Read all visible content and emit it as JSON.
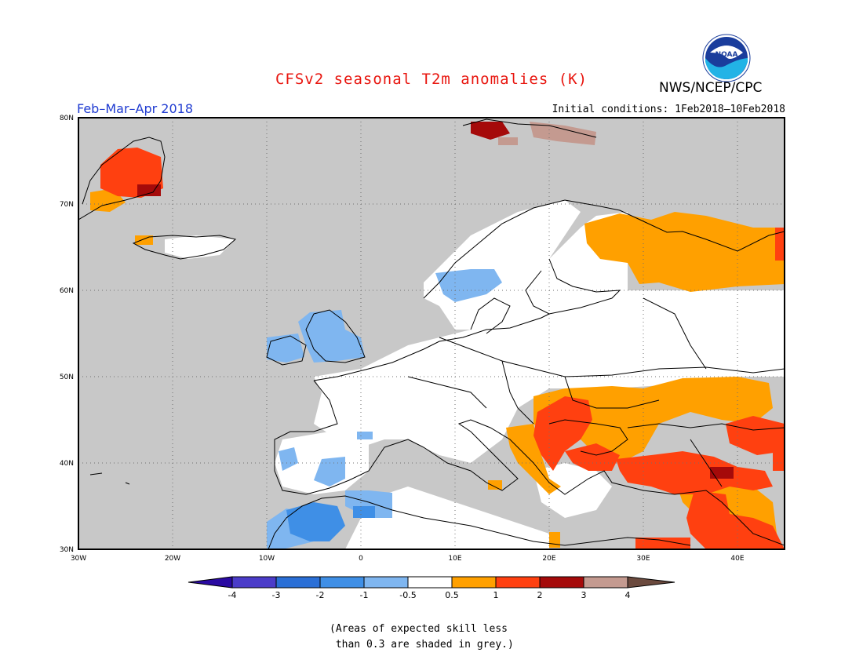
{
  "title": "CFSv2 seasonal T2m anomalies (K)",
  "organization": "NWS/NCEP/CPC",
  "logo_text": "NOAA",
  "season_label": "Feb–Mar–Apr 2018",
  "initial_conditions": "Initial conditions: 1Feb2018–10Feb2018",
  "footnote": "(Areas of expected skill less\n than 0.3 are shaded in grey.)",
  "colors": {
    "title": "#e8150e",
    "season": "#1f3bd1",
    "no_skill_grey": "#c8c8c8",
    "land_white": "#ffffff",
    "ocean_grey": "#c8c8c8"
  },
  "map": {
    "lon_range": [
      -30,
      45
    ],
    "lat_range": [
      30,
      80
    ],
    "lat_ticks": [
      "30N",
      "40N",
      "50N",
      "60N",
      "70N",
      "80N"
    ],
    "lon_ticks": [
      "30W",
      "20W",
      "10W",
      "0",
      "10E",
      "20E",
      "30E",
      "40E"
    ],
    "gridlines": "dotted",
    "anomaly_regions": [
      {
        "name": "Greenland east coast",
        "category": "1 to 2",
        "lon": [
          -27,
          -22
        ],
        "lat": [
          70,
          75
        ]
      },
      {
        "name": "Iceland",
        "category": "0.5 to 1",
        "lon": [
          -22,
          -15
        ],
        "lat": [
          64,
          66
        ]
      },
      {
        "name": "Svalbard",
        "category": "2 to 3",
        "lon": [
          12,
          22
        ],
        "lat": [
          77,
          80
        ]
      },
      {
        "name": "Scandinavia west",
        "category": "-1 to -0.5",
        "lon": [
          5,
          15
        ],
        "lat": [
          58,
          63
        ]
      },
      {
        "name": "British Isles",
        "category": "-1 to -0.5",
        "lon": [
          -10,
          0
        ],
        "lat": [
          51,
          58
        ]
      },
      {
        "name": "Iberia south",
        "category": "-1 to -0.5",
        "lon": [
          -9,
          -3
        ],
        "lat": [
          36,
          40
        ]
      },
      {
        "name": "Northwest Africa",
        "category": "-2 to -1",
        "lon": [
          -10,
          2
        ],
        "lat": [
          30,
          35
        ]
      },
      {
        "name": "Northwest Russia",
        "category": "0.5 to 1",
        "lon": [
          25,
          45
        ],
        "lat": [
          61,
          69
        ]
      },
      {
        "name": "Balkans",
        "category": "1 to 2",
        "lon": [
          17,
          27
        ],
        "lat": [
          40,
          46
        ]
      },
      {
        "name": "Eastern Europe",
        "category": "0.5 to 1",
        "lon": [
          15,
          45
        ],
        "lat": [
          44,
          50
        ]
      },
      {
        "name": "Turkey",
        "category": "1 to 2",
        "lon": [
          27,
          45
        ],
        "lat": [
          36,
          41
        ]
      },
      {
        "name": "Middle East",
        "category": "1 to 2",
        "lon": [
          35,
          45
        ],
        "lat": [
          30,
          36
        ]
      }
    ]
  },
  "colorbar": {
    "labels": [
      "-4",
      "-3",
      "-2",
      "-1",
      "-0.5",
      "0.5",
      "1",
      "2",
      "3",
      "4"
    ],
    "colors": [
      "#2a0aa2",
      "#4b3cc9",
      "#2a6fd6",
      "#3f8fe6",
      "#7fb6f0",
      "#ffffff",
      "#ffa000",
      "#ff4010",
      "#a50a0a",
      "#c49a90",
      "#6b4a3e"
    ]
  }
}
